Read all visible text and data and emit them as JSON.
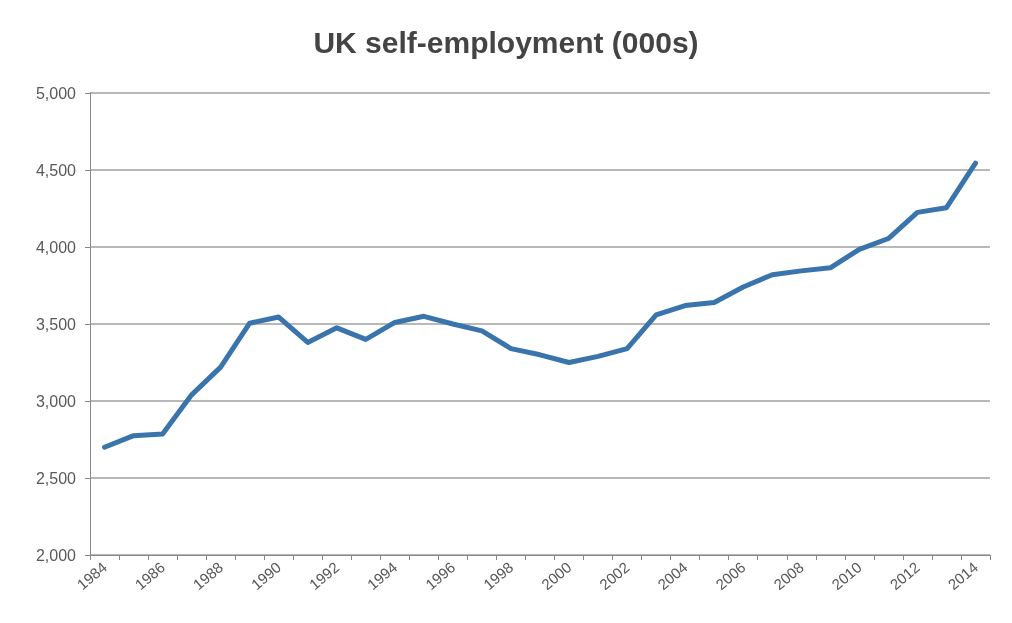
{
  "chart_data": {
    "type": "line",
    "title": "UK self-employment (000s)",
    "categories": [
      "1984",
      null,
      "1986",
      null,
      "1988",
      null,
      "1990",
      null,
      "1992",
      null,
      "1994",
      null,
      "1996",
      null,
      "1998",
      null,
      "2000",
      null,
      "2002",
      null,
      "2004",
      null,
      "2006",
      null,
      "2008",
      null,
      "2010",
      null,
      "2012",
      null,
      "2014"
    ],
    "series": [
      {
        "color": "#3a74ad",
        "values": [
          2700,
          2775,
          2785,
          3040,
          3220,
          3505,
          3545,
          3380,
          3475,
          3400,
          3510,
          3550,
          3500,
          3455,
          3340,
          3300,
          3250,
          3290,
          3340,
          3560,
          3620,
          3640,
          3740,
          3820,
          3845,
          3865,
          3985,
          4055,
          4225,
          4255,
          4545
        ]
      }
    ],
    "ylim": [
      2000,
      5000
    ],
    "yticks": [
      {
        "value": 2000,
        "label": "2,000"
      },
      {
        "value": 2500,
        "label": "2,500"
      },
      {
        "value": 3000,
        "label": "3,000"
      },
      {
        "value": 3500,
        "label": "3,500"
      },
      {
        "value": 4000,
        "label": "4,000"
      },
      {
        "value": 4500,
        "label": "4,500"
      },
      {
        "value": 5000,
        "label": "5,000"
      }
    ],
    "grid": "y",
    "marker": "none",
    "line_style": "solid"
  }
}
